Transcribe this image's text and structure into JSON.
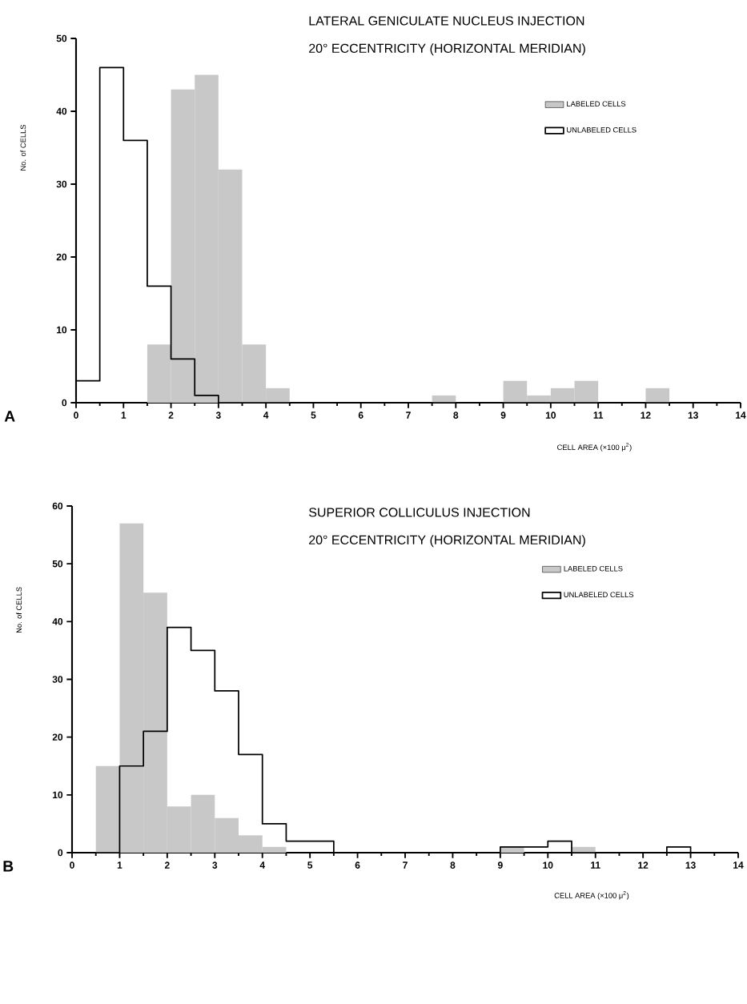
{
  "chart_data": [
    {
      "type": "histogram",
      "title": "LATERAL GENICULATE NUCLEUS INJECTION",
      "subtitle": "20° ECCENTRICITY (HORIZONTAL MERIDIAN)",
      "xlabel": "CELL AREA (×100 μ$^{2}$)",
      "ylabel": "No. of CELLS",
      "annotations": [
        "A"
      ],
      "bins": [
        0,
        0.5,
        1,
        1.5,
        2,
        2.5,
        3,
        3.5,
        4,
        4.5,
        5,
        5.5,
        6,
        6.5,
        7,
        7.5,
        8,
        8.5,
        9,
        9.5,
        10,
        10.5,
        11,
        11.5,
        12,
        12.5,
        13,
        13.5,
        14
      ],
      "series": [
        {
          "name": "LABELED CELLS",
          "type": "histogram",
          "color": "#c8c8c8",
          "values": [
            0,
            0,
            0,
            8,
            43,
            45,
            32,
            8,
            2,
            0,
            0,
            0,
            0,
            0,
            0,
            1,
            0,
            0,
            3,
            1,
            2,
            3,
            0,
            0,
            2,
            0,
            0,
            0
          ]
        },
        {
          "name": "UNLABELED CELLS",
          "type": "step",
          "color": "#000000",
          "x": [
            0,
            0.5,
            1,
            1.5,
            2,
            2.5,
            3,
            3.5,
            4,
            4.5,
            5,
            5.5,
            6,
            6.5,
            7,
            7.5,
            8,
            8.5,
            9,
            9.5,
            10,
            10.5,
            11,
            11.5,
            12,
            12.5,
            13,
            13.5,
            14
          ],
          "values": [
            3,
            46,
            36,
            16,
            6,
            1,
            0,
            0,
            0,
            0,
            0,
            0,
            0,
            0,
            0,
            0,
            0,
            0,
            0,
            0,
            0,
            0,
            0,
            0,
            0,
            0,
            0,
            0,
            0
          ]
        }
      ],
      "xlim": [
        0,
        14
      ],
      "xticks": [
        0,
        1,
        2,
        3,
        4,
        5,
        6,
        7,
        8,
        9,
        10,
        11,
        12,
        13,
        14
      ],
      "ylim": [
        0,
        50
      ],
      "yticks": [
        0,
        10,
        20,
        30,
        40,
        50
      ],
      "grid": false,
      "legend": "right"
    },
    {
      "type": "histogram",
      "title": "SUPERIOR COLLICULUS INJECTION",
      "subtitle": "20° ECCENTRICITY (HORIZONTAL MERIDIAN)",
      "xlabel": "CELL AREA (×100 μ$^{2}$)",
      "ylabel": "No. of CELLS",
      "annotations": [
        "B"
      ],
      "bins": [
        0,
        0.5,
        1,
        1.5,
        2,
        2.5,
        3,
        3.5,
        4,
        4.5,
        5,
        5.5,
        6,
        6.5,
        7,
        7.5,
        8,
        8.5,
        9,
        9.5,
        10,
        10.5,
        11,
        11.5,
        12,
        12.5,
        13,
        13.5,
        14
      ],
      "series": [
        {
          "name": "LABELED CELLS",
          "type": "histogram",
          "color": "#c8c8c8",
          "values": [
            0,
            15,
            57,
            45,
            8,
            10,
            6,
            3,
            1,
            0,
            0,
            0,
            0,
            0,
            0,
            0,
            0,
            0,
            1,
            0,
            0,
            1,
            0,
            0,
            0,
            0,
            0,
            0
          ]
        },
        {
          "name": "UNLABELED CELLS",
          "type": "step",
          "color": "#000000",
          "x": [
            0,
            0.5,
            1,
            1.5,
            2,
            2.5,
            3,
            3.5,
            4,
            4.5,
            5,
            5.5,
            6,
            6.5,
            7,
            7.5,
            8,
            8.5,
            9,
            9.5,
            10,
            10.5,
            11,
            11.5,
            12,
            12.5,
            13,
            13.5,
            14
          ],
          "values": [
            0,
            0,
            15,
            21,
            39,
            35,
            28,
            17,
            5,
            2,
            2,
            0,
            0,
            0,
            0,
            0,
            0,
            0,
            1,
            1,
            2,
            0,
            0,
            0,
            0,
            1,
            0,
            0,
            0
          ]
        }
      ],
      "xlim": [
        0,
        14
      ],
      "xticks": [
        0,
        1,
        2,
        3,
        4,
        5,
        6,
        7,
        8,
        9,
        10,
        11,
        12,
        13,
        14
      ],
      "ylim": [
        0,
        60
      ],
      "yticks": [
        0,
        10,
        20,
        30,
        40,
        50,
        60
      ],
      "grid": false,
      "legend": "right"
    }
  ]
}
